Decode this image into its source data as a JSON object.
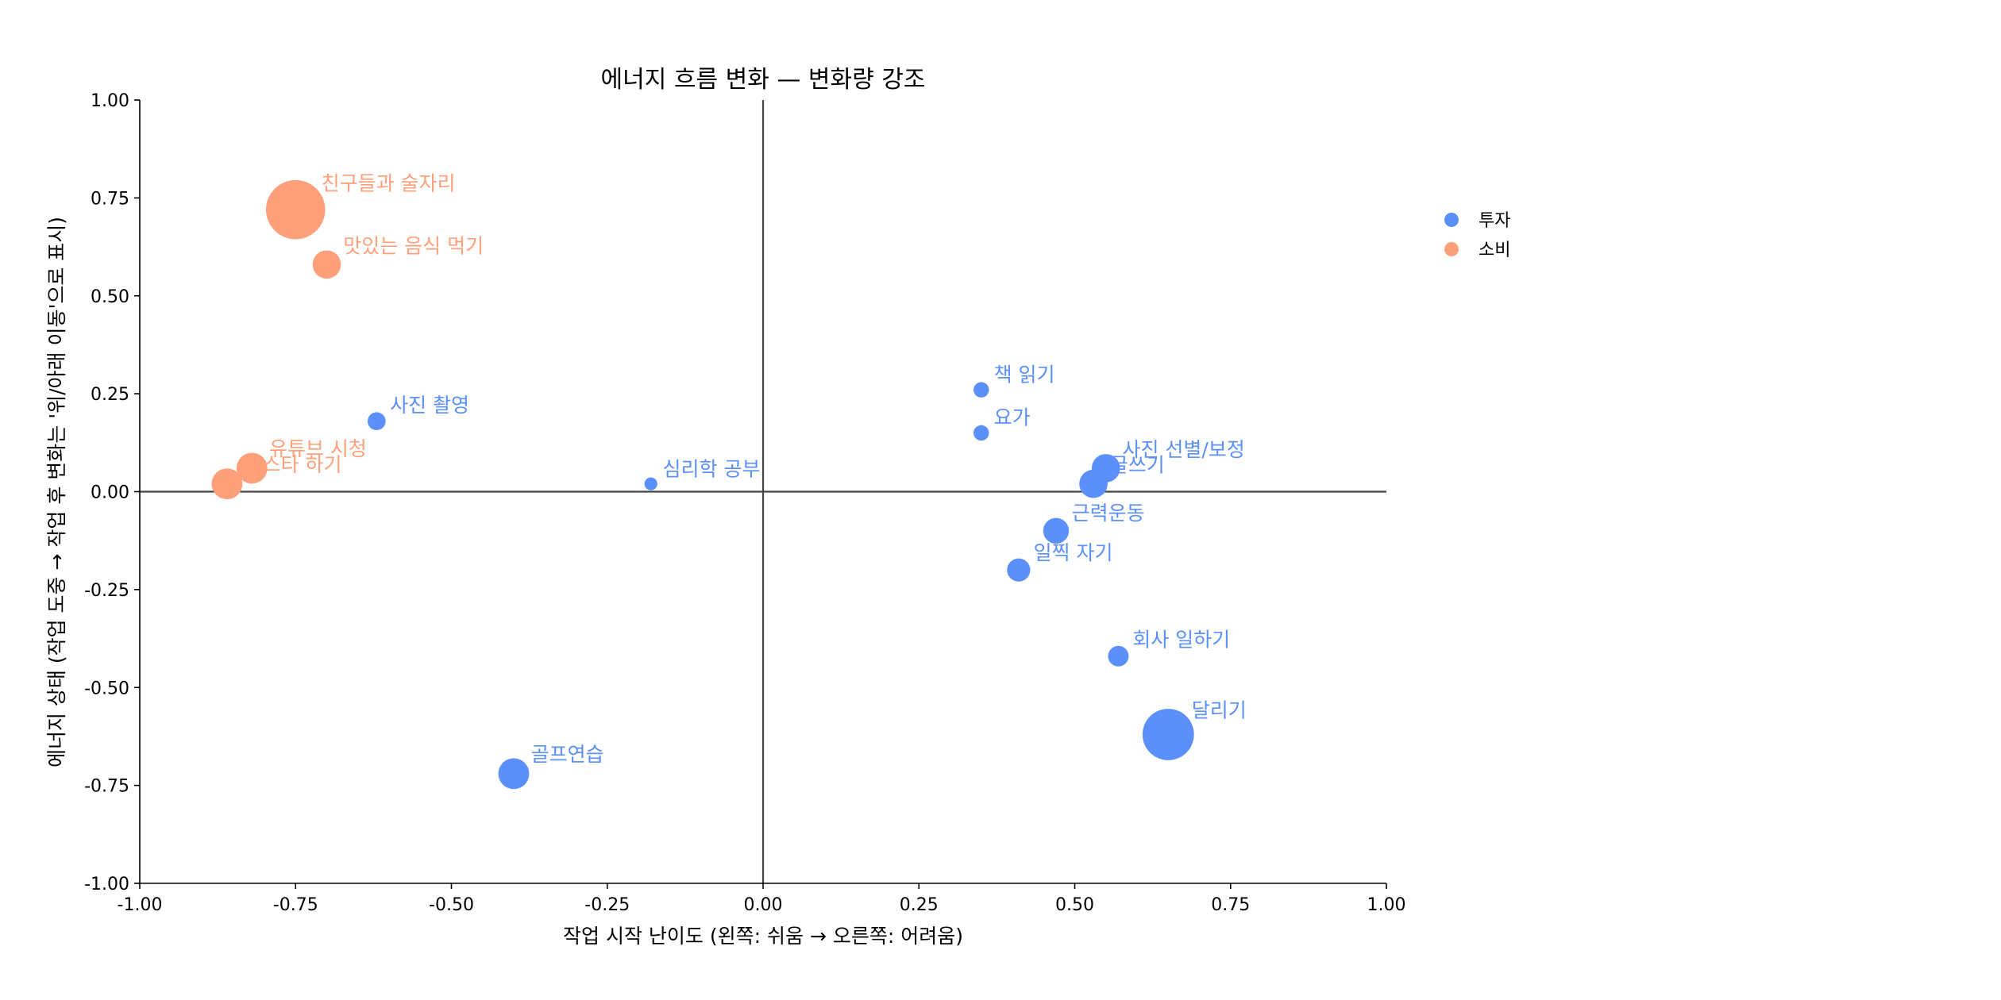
{
  "chart_data": {
    "type": "scatter",
    "title": "에너지 흐름 변화 — 변화량 강조",
    "xlabel": "작업 시작 난이도  (왼쪽: 쉬움  →  오른쪽: 어려움)",
    "ylabel": "에너지 상태 (작업 도중 → 작업 후 변화는 '위/아래 이동'으로 표시)",
    "xlim": [
      -1,
      1
    ],
    "ylim": [
      -1,
      1
    ],
    "xticks": [
      "-1.00",
      "-0.75",
      "-0.50",
      "-0.25",
      "0.00",
      "0.25",
      "0.50",
      "0.75",
      "1.00"
    ],
    "yticks": [
      "-1.00",
      "-0.75",
      "-0.50",
      "-0.25",
      "0.00",
      "0.25",
      "0.50",
      "0.75",
      "1.00"
    ],
    "grid": false,
    "legend_position": "outside-right",
    "colors": {
      "투자": "#5b8ff9",
      "소비": "#ffa07a"
    },
    "series": [
      {
        "name": "투자",
        "points": [
          {
            "label": "사진 촬영",
            "x": -0.62,
            "y": 0.18,
            "size": 7
          },
          {
            "label": "심리학 공부",
            "x": -0.18,
            "y": 0.02,
            "size": 5
          },
          {
            "label": "책 읽기",
            "x": 0.35,
            "y": 0.26,
            "size": 6
          },
          {
            "label": "요가",
            "x": 0.35,
            "y": 0.15,
            "size": 6
          },
          {
            "label": "사진 선별/보정",
            "x": 0.55,
            "y": 0.06,
            "size": 11
          },
          {
            "label": "글쓰기",
            "x": 0.53,
            "y": 0.02,
            "size": 11
          },
          {
            "label": "근력운동",
            "x": 0.47,
            "y": -0.1,
            "size": 10
          },
          {
            "label": "일찍 자기",
            "x": 0.41,
            "y": -0.2,
            "size": 9
          },
          {
            "label": "회사 일하기",
            "x": 0.57,
            "y": -0.42,
            "size": 8
          },
          {
            "label": "달리기",
            "x": 0.65,
            "y": -0.62,
            "size": 20
          },
          {
            "label": "골프연습",
            "x": -0.4,
            "y": -0.72,
            "size": 12
          }
        ]
      },
      {
        "name": "소비",
        "points": [
          {
            "label": "친구들과 술자리",
            "x": -0.75,
            "y": 0.72,
            "size": 23
          },
          {
            "label": "맛있는 음식 먹기",
            "x": -0.7,
            "y": 0.58,
            "size": 11
          },
          {
            "label": "유튜브 시청",
            "x": -0.82,
            "y": 0.06,
            "size": 12
          },
          {
            "label": "인스타 하기",
            "x": -0.86,
            "y": 0.02,
            "size": 12
          }
        ]
      }
    ]
  }
}
